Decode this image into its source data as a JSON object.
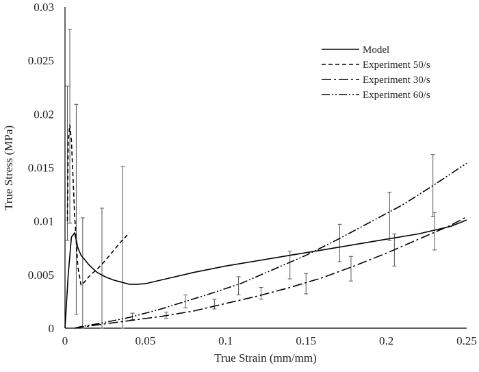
{
  "chart_data": {
    "type": "line",
    "title": "",
    "xlabel": "True Strain (mm/mm)",
    "ylabel": "True Stress (MPa)",
    "xlim": [
      0,
      0.25
    ],
    "ylim": [
      0,
      0.03
    ],
    "grid": false,
    "legend_position": "top-right",
    "x_ticks": [
      "0",
      "0.05",
      "0.1",
      "0.15",
      "0.2",
      "0.25"
    ],
    "x_tick_values": [
      0,
      0.05,
      0.1,
      0.15,
      0.2,
      0.25
    ],
    "y_ticks": [
      "0",
      "0.005",
      "0.01",
      "0.015",
      "0.02",
      "0.025",
      "0.03"
    ],
    "y_tick_values": [
      0,
      0.005,
      0.01,
      0.015,
      0.02,
      0.025,
      0.03
    ],
    "series": [
      {
        "name": "Model",
        "dash": "solid",
        "x": [
          0,
          0.002,
          0.004,
          0.006,
          0.008,
          0.01,
          0.015,
          0.02,
          0.025,
          0.03,
          0.035,
          0.04,
          0.045,
          0.05,
          0.06,
          0.08,
          0.1,
          0.12,
          0.14,
          0.16,
          0.18,
          0.2,
          0.22,
          0.24,
          0.25
        ],
        "y": [
          0,
          0.005,
          0.0085,
          0.0089,
          0.0075,
          0.0068,
          0.0059,
          0.0052,
          0.0048,
          0.0045,
          0.0043,
          0.0041,
          0.0041,
          0.00415,
          0.0045,
          0.0052,
          0.0058,
          0.0063,
          0.0068,
          0.0073,
          0.0078,
          0.0083,
          0.0088,
          0.0095,
          0.0101
        ]
      },
      {
        "name": "Experiment 50/s",
        "dash": "dashed",
        "x": [
          0.0015,
          0.002,
          0.003,
          0.004,
          0.006,
          0.008,
          0.01,
          0.012,
          0.016,
          0.02,
          0.025,
          0.03,
          0.035,
          0.04
        ],
        "y": [
          0.01,
          0.0175,
          0.019,
          0.0175,
          0.0105,
          0.0057,
          0.004,
          0.0043,
          0.005,
          0.0055,
          0.0063,
          0.0072,
          0.0081,
          0.0089
        ]
      },
      {
        "name": "Experiment 30/s",
        "dash": "dashdot",
        "x": [
          0.006,
          0.01,
          0.02,
          0.03,
          0.04,
          0.05,
          0.06,
          0.08,
          0.1,
          0.12,
          0.14,
          0.16,
          0.18,
          0.2,
          0.22,
          0.24,
          0.25
        ],
        "y": [
          0,
          0.0001,
          0.0003,
          0.0005,
          0.0007,
          0.0009,
          0.0011,
          0.0016,
          0.0023,
          0.003,
          0.0038,
          0.0047,
          0.0058,
          0.007,
          0.0083,
          0.0096,
          0.0104
        ]
      },
      {
        "name": "Experiment 60/s",
        "dash": "dashdotdot",
        "x": [
          0.006,
          0.01,
          0.02,
          0.03,
          0.04,
          0.05,
          0.06,
          0.075,
          0.09,
          0.11,
          0.13,
          0.15,
          0.17,
          0.19,
          0.21,
          0.23,
          0.25
        ],
        "y": [
          0,
          0.00015,
          0.0004,
          0.0007,
          0.001,
          0.0014,
          0.0018,
          0.0025,
          0.0032,
          0.0042,
          0.0055,
          0.0068,
          0.0083,
          0.0099,
          0.0115,
          0.0134,
          0.0154
        ]
      }
    ],
    "error_bars": [
      {
        "x": 0.0015,
        "low": 0.0082,
        "high": 0.0226
      },
      {
        "x": 0.003,
        "low": 0.0098,
        "high": 0.0279
      },
      {
        "x": 0.007,
        "low": 0.0013,
        "high": 0.0209
      },
      {
        "x": 0.011,
        "low": 0.0,
        "high": 0.0103
      },
      {
        "x": 0.023,
        "low": 0.0,
        "high": 0.0112
      },
      {
        "x": 0.036,
        "low": 0.0,
        "high": 0.0151
      },
      {
        "x": 0.042,
        "low": 0.0008,
        "high": 0.0014
      },
      {
        "x": 0.063,
        "low": 0.0009,
        "high": 0.0015
      },
      {
        "x": 0.075,
        "low": 0.0019,
        "high": 0.0031
      },
      {
        "x": 0.093,
        "low": 0.0018,
        "high": 0.0027
      },
      {
        "x": 0.108,
        "low": 0.0031,
        "high": 0.0048
      },
      {
        "x": 0.122,
        "low": 0.0027,
        "high": 0.0038
      },
      {
        "x": 0.14,
        "low": 0.0046,
        "high": 0.0072
      },
      {
        "x": 0.15,
        "low": 0.0032,
        "high": 0.0051
      },
      {
        "x": 0.171,
        "low": 0.0062,
        "high": 0.0097
      },
      {
        "x": 0.178,
        "low": 0.0044,
        "high": 0.0067
      },
      {
        "x": 0.202,
        "low": 0.0082,
        "high": 0.0127
      },
      {
        "x": 0.205,
        "low": 0.0058,
        "high": 0.0088
      },
      {
        "x": 0.229,
        "low": 0.0104,
        "high": 0.0162
      },
      {
        "x": 0.23,
        "low": 0.0073,
        "high": 0.0108
      }
    ]
  }
}
